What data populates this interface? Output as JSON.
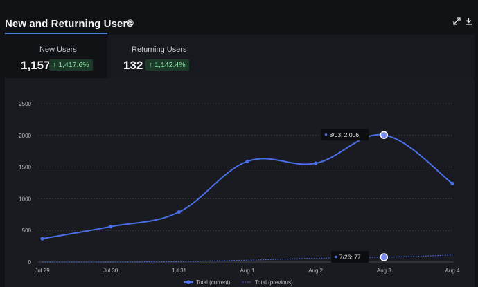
{
  "header": {
    "title": "New and Returning Users"
  },
  "tabs": [
    {
      "label": "New Users",
      "value": "1,157",
      "change": "1,417.6%"
    },
    {
      "label": "Returning Users",
      "value": "132",
      "change": "1,142.4%"
    }
  ],
  "colors": {
    "accent": "#4c7dd9",
    "series_current": "#4a6ee8",
    "series_previous": "#4a6ee8",
    "badge_bg": "#1c3a28",
    "badge_text": "#8fe0a6"
  },
  "icons": [
    "info-icon",
    "expand-icon",
    "download-icon",
    "up-arrow-icon"
  ],
  "chart_data": {
    "type": "line",
    "categories": [
      "Jul 29",
      "Jul 30",
      "Jul 31",
      "Aug 1",
      "Aug 2",
      "Aug 3",
      "Aug 4"
    ],
    "y_ticks": [
      "0",
      "500",
      "1000",
      "1500",
      "2000",
      "2500"
    ],
    "ylim": [
      0,
      2500
    ],
    "grid": true,
    "series": [
      {
        "name": "Total (current)",
        "style": "solid",
        "values": [
          370,
          560,
          790,
          1590,
          1560,
          2006,
          1240
        ]
      },
      {
        "name": "Total (previous)",
        "style": "dotted",
        "values": [
          0,
          0,
          10,
          30,
          60,
          77,
          110
        ]
      }
    ],
    "tooltips": [
      {
        "text": "8/03: 2,006",
        "series": 0,
        "index": 5
      },
      {
        "text": "7/26: 77",
        "series": 1,
        "index": 5
      }
    ],
    "legend_position": "bottom"
  }
}
